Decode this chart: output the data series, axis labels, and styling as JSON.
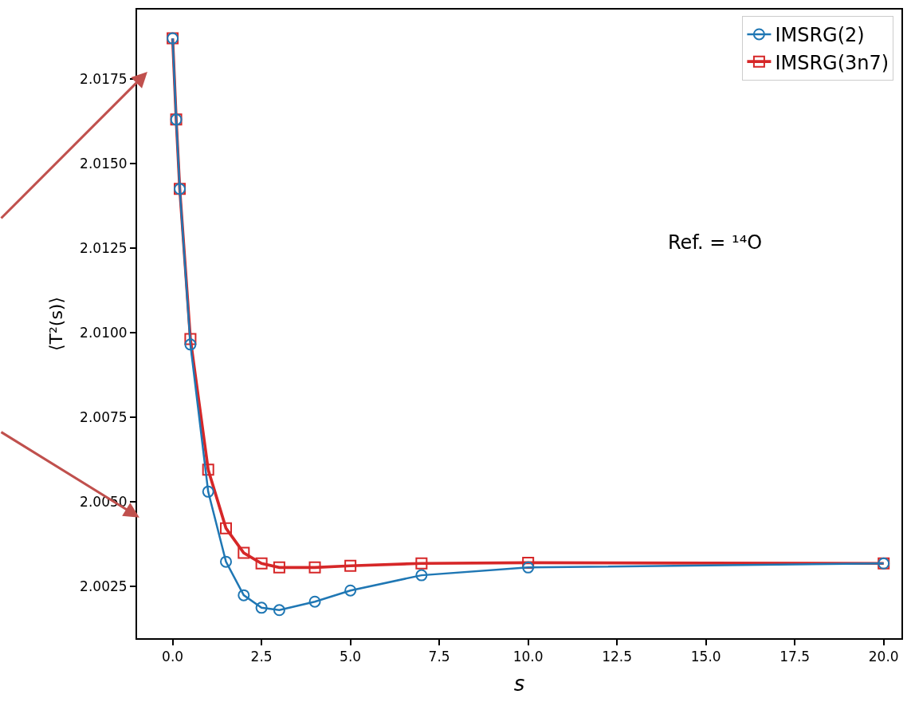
{
  "chart_data": {
    "type": "line",
    "xlabel": "s",
    "ylabel": "⟨T²(s)⟩",
    "x": [
      0,
      0.1,
      0.2,
      0.5,
      1,
      1.5,
      2,
      2.5,
      3,
      4,
      5,
      7,
      10,
      20
    ],
    "series": [
      {
        "name": "IMSRG(2)",
        "color": "#1f77b4",
        "marker": "circle",
        "values": [
          2.0187,
          2.0163,
          2.01425,
          2.00965,
          2.0053,
          2.00323,
          2.00224,
          2.00187,
          2.0018,
          2.00205,
          2.00238,
          2.00283,
          2.00306,
          2.00318
        ]
      },
      {
        "name": "IMSRG(3n7)",
        "color": "#d62728",
        "marker": "square",
        "values": [
          2.0187,
          2.0163,
          2.01425,
          2.00981,
          2.00595,
          2.00422,
          2.00349,
          2.00318,
          2.00306,
          2.00306,
          2.00311,
          2.00318,
          2.0032,
          2.00318
        ]
      }
    ],
    "xlim": [
      -1.0,
      20.5
    ],
    "ylim": [
      2.00097,
      2.01955
    ],
    "xticks": [
      {
        "value": 0,
        "label": "0.0"
      },
      {
        "value": 2.5,
        "label": "2.5"
      },
      {
        "value": 5,
        "label": "5.0"
      },
      {
        "value": 7.5,
        "label": "7.5"
      },
      {
        "value": 10,
        "label": "10.0"
      },
      {
        "value": 12.5,
        "label": "12.5"
      },
      {
        "value": 15,
        "label": "15.0"
      },
      {
        "value": 17.5,
        "label": "17.5"
      },
      {
        "value": 20,
        "label": "20.0"
      }
    ],
    "yticks": [
      {
        "value": 2.0025,
        "label": "2.0025"
      },
      {
        "value": 2.005,
        "label": "2.0050"
      },
      {
        "value": 2.0075,
        "label": "2.0075"
      },
      {
        "value": 2.01,
        "label": "2.0100"
      },
      {
        "value": 2.0125,
        "label": "2.0125"
      },
      {
        "value": 2.015,
        "label": "2.0150"
      },
      {
        "value": 2.0175,
        "label": "2.0175"
      }
    ],
    "annotations": [
      "Ref. = ¹⁴O"
    ],
    "legend": "top right",
    "grid": false,
    "line_style": "solid"
  }
}
